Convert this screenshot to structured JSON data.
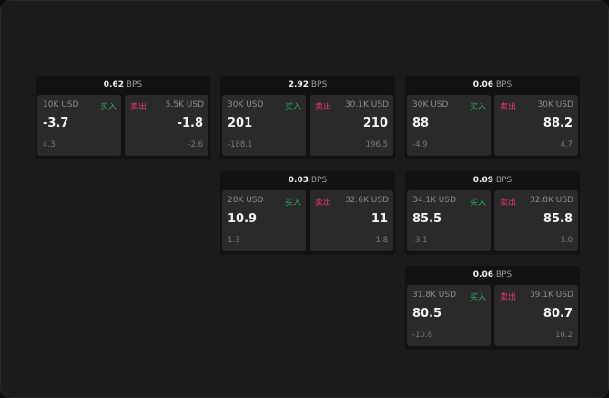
{
  "labels": {
    "buy": "买入",
    "sell": "卖出",
    "unit": "BPS"
  },
  "colors": {
    "buy": "#2fae5e",
    "sell": "#e0396a"
  },
  "tiles": [
    {
      "spread": "0.62",
      "bid_size": "10K USD",
      "bid": "-3.7",
      "bid_chg": "4.3",
      "ask_size": "5.5K USD",
      "ask": "-1.8",
      "ask_chg": "-2.6"
    },
    {
      "spread": "2.92",
      "bid_size": "30K USD",
      "bid": "201",
      "bid_chg": "-188.1",
      "ask_size": "30.1K USD",
      "ask": "210",
      "ask_chg": "196.5"
    },
    {
      "spread": "0.06",
      "bid_size": "30K USD",
      "bid": "88",
      "bid_chg": "-4.9",
      "ask_size": "30K USD",
      "ask": "88.2",
      "ask_chg": "4.7"
    },
    {
      "spread": "0.03",
      "bid_size": "28K USD",
      "bid": "10.9",
      "bid_chg": "1.3",
      "ask_size": "32.6K USD",
      "ask": "11",
      "ask_chg": "-1.8"
    },
    {
      "spread": "0.09",
      "bid_size": "34.1K USD",
      "bid": "85.5",
      "bid_chg": "-3.1",
      "ask_size": "32.8K USD",
      "ask": "85.8",
      "ask_chg": "3.0"
    },
    {
      "spread": "0.06",
      "bid_size": "31.8K USD",
      "bid": "80.5",
      "bid_chg": "-10.8",
      "ask_size": "39.1K USD",
      "ask": "80.7",
      "ask_chg": "10.2"
    }
  ]
}
